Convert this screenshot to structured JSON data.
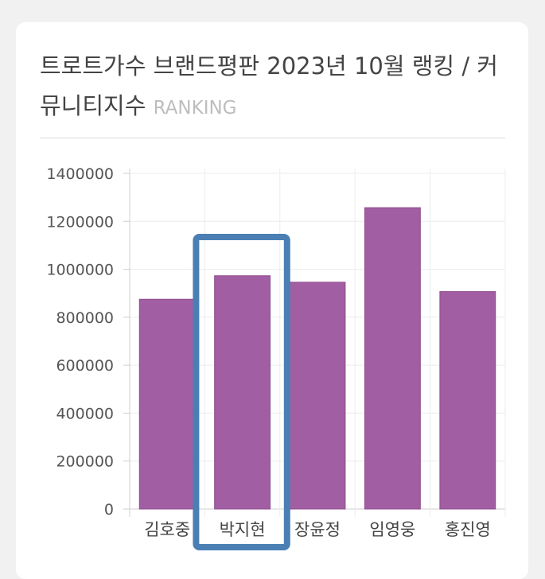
{
  "title": "트로트가수 브랜드평판 2023년 10월 랭킹 / 커뮤니티지수",
  "subtitle": "RANKING",
  "colors": {
    "bar": "#a25ea2",
    "highlight": "#4a7fb4",
    "grid": "#ececec"
  },
  "highlighted_category": "박지현",
  "chart_data": {
    "type": "bar",
    "title": "트로트가수 브랜드평판 2023년 10월 랭킹 / 커뮤니티지수",
    "xlabel": "",
    "ylabel": "",
    "categories": [
      "김호중",
      "박지현",
      "장윤정",
      "임영웅",
      "홍진영"
    ],
    "values": [
      875000,
      973000,
      946000,
      1257000,
      907000
    ],
    "ylim": [
      0,
      1400000
    ],
    "yticks": [
      "0",
      "200000",
      "400000",
      "600000",
      "800000",
      "1000000",
      "1200000",
      "1400000"
    ],
    "grid": true,
    "legend": "none"
  }
}
